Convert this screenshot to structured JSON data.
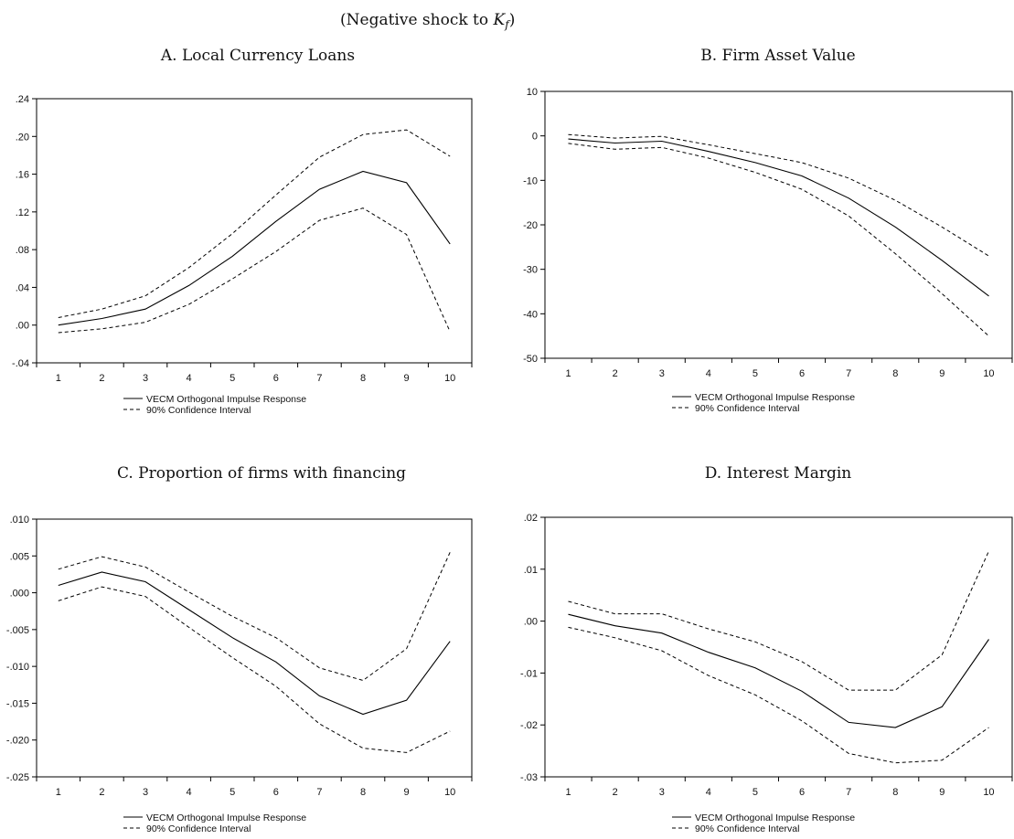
{
  "figure": {
    "title_prefix": "(Negative shock to ",
    "title_var": "K",
    "title_sub": "f",
    "title_suffix": ")"
  },
  "legend": {
    "irf_label": "VECM Orthogonal Impulse Response",
    "ci_label": "90% Confidence Interval"
  },
  "chart_data": [
    {
      "type": "line",
      "title": "A. Local Currency Loans",
      "x": [
        1,
        2,
        3,
        4,
        5,
        6,
        7,
        8,
        9,
        10
      ],
      "ylim": [
        -0.04,
        0.24
      ],
      "yticks": [
        -0.04,
        0.0,
        0.04,
        0.08,
        0.12,
        0.16,
        0.2,
        0.24
      ],
      "ytick_labels": [
        "-.04",
        ".00",
        ".04",
        ".08",
        ".12",
        ".16",
        ".20",
        ".24"
      ],
      "series": [
        {
          "name": "VECM Orthogonal Impulse Response",
          "style": "solid",
          "values": [
            0.0,
            0.007,
            0.017,
            0.042,
            0.073,
            0.11,
            0.144,
            0.163,
            0.151,
            0.086
          ]
        },
        {
          "name": "90% Confidence Interval",
          "style": "dashed",
          "values": [
            0.008,
            0.017,
            0.031,
            0.061,
            0.097,
            0.138,
            0.178,
            0.202,
            0.207,
            0.179
          ]
        },
        {
          "style": "dashed",
          "values": [
            -0.008,
            -0.004,
            0.003,
            0.022,
            0.049,
            0.078,
            0.111,
            0.124,
            0.096,
            -0.007
          ]
        }
      ]
    },
    {
      "type": "line",
      "title": "B. Firm Asset Value",
      "x": [
        1,
        2,
        3,
        4,
        5,
        6,
        7,
        8,
        9,
        10
      ],
      "ylim": [
        -50,
        10
      ],
      "yticks": [
        -50,
        -40,
        -30,
        -20,
        -10,
        0,
        10
      ],
      "ytick_labels": [
        "-50",
        "-40",
        "-30",
        "-20",
        "-10",
        "0",
        "10"
      ],
      "series": [
        {
          "name": "VECM Orthogonal Impulse Response",
          "style": "solid",
          "values": [
            -0.7,
            -1.6,
            -1.2,
            -3.5,
            -6.0,
            -9.0,
            -14.0,
            -20.5,
            -28.0,
            -36.0
          ]
        },
        {
          "name": "90% Confidence Interval",
          "style": "dashed",
          "values": [
            0.3,
            -0.5,
            -0.1,
            -2.0,
            -4.0,
            -6.0,
            -9.5,
            -14.5,
            -20.5,
            -27.0
          ]
        },
        {
          "style": "dashed",
          "values": [
            -1.7,
            -3.0,
            -2.6,
            -5.0,
            -8.2,
            -12.0,
            -18.0,
            -26.5,
            -35.5,
            -45.0
          ]
        }
      ]
    },
    {
      "type": "line",
      "title": "C. Proportion of firms with financing",
      "x": [
        1,
        2,
        3,
        4,
        5,
        6,
        7,
        8,
        9,
        10
      ],
      "ylim": [
        -0.025,
        0.01
      ],
      "yticks": [
        -0.025,
        -0.02,
        -0.015,
        -0.01,
        -0.005,
        0.0,
        0.005,
        0.01
      ],
      "ytick_labels": [
        "-.025",
        "-.020",
        "-.015",
        "-.010",
        "-.005",
        ".000",
        ".005",
        ".010"
      ],
      "series": [
        {
          "name": "VECM Orthogonal Impulse Response",
          "style": "solid",
          "values": [
            0.001,
            0.0028,
            0.0015,
            -0.0023,
            -0.0061,
            -0.0094,
            -0.014,
            -0.0165,
            -0.0146,
            -0.0066
          ]
        },
        {
          "name": "90% Confidence Interval",
          "style": "dashed",
          "values": [
            0.0032,
            0.0049,
            0.0035,
            0.0001,
            -0.0032,
            -0.0061,
            -0.0102,
            -0.0119,
            -0.0076,
            0.0055
          ]
        },
        {
          "style": "dashed",
          "values": [
            -0.0011,
            0.0008,
            -0.0005,
            -0.0047,
            -0.0088,
            -0.0127,
            -0.0178,
            -0.0211,
            -0.0217,
            -0.0188
          ]
        }
      ]
    },
    {
      "type": "line",
      "title": "D. Interest Margin",
      "x": [
        1,
        2,
        3,
        4,
        5,
        6,
        7,
        8,
        9,
        10
      ],
      "ylim": [
        -0.03,
        0.02
      ],
      "yticks": [
        -0.03,
        -0.02,
        -0.01,
        0.0,
        0.01,
        0.02
      ],
      "ytick_labels": [
        "-.03",
        "-.02",
        "-.01",
        ".00",
        ".01",
        ".02"
      ],
      "series": [
        {
          "name": "VECM Orthogonal Impulse Response",
          "style": "solid",
          "values": [
            0.0013,
            -0.0009,
            -0.0023,
            -0.006,
            -0.009,
            -0.0135,
            -0.0195,
            -0.0205,
            -0.0165,
            -0.0035
          ]
        },
        {
          "name": "90% Confidence Interval",
          "style": "dashed",
          "values": [
            0.0038,
            0.0014,
            0.0014,
            -0.0015,
            -0.004,
            -0.0078,
            -0.0133,
            -0.0133,
            -0.0065,
            0.0135
          ]
        },
        {
          "style": "dashed",
          "values": [
            -0.0012,
            -0.0032,
            -0.0057,
            -0.0105,
            -0.0142,
            -0.0192,
            -0.0255,
            -0.0273,
            -0.0268,
            -0.0205
          ]
        }
      ]
    }
  ]
}
